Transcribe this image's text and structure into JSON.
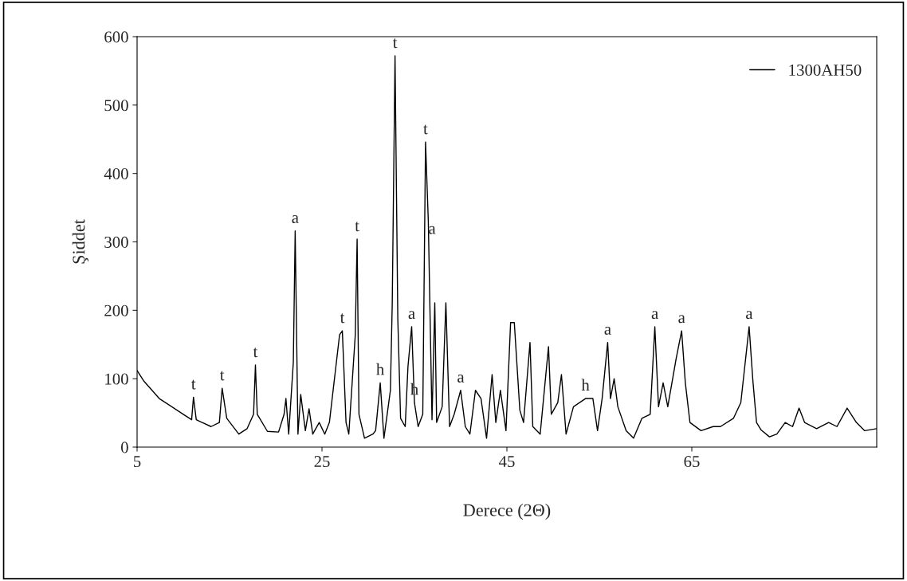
{
  "chart_data": {
    "type": "line",
    "xlabel": "Derece (2Θ)",
    "ylabel": "Şiddet",
    "xlim": [
      5,
      85
    ],
    "xticks": [
      5,
      25,
      45,
      65
    ],
    "ylim": [
      0,
      600
    ],
    "yticks": [
      0,
      100,
      200,
      300,
      400,
      500,
      600
    ],
    "grid": false,
    "legend": "top right",
    "marker": "none",
    "line_style": "solid",
    "series": [
      {
        "name": "1300AH50",
        "color": "#000000",
        "x": [
          5,
          5.7,
          7.4,
          10.0,
          10.9,
          11.1,
          11.4,
          13.0,
          13.9,
          14.2,
          14.7,
          16.0,
          16.9,
          17.6,
          17.8,
          18.0,
          19.1,
          20.3,
          20.9,
          21.1,
          21.4,
          21.9,
          22.1,
          22.4,
          22.7,
          23.2,
          23.6,
          24.0,
          24.7,
          25.3,
          25.8,
          26.9,
          27.2,
          27.6,
          27.9,
          28.6,
          28.8,
          29.0,
          29.6,
          30.5,
          30.8,
          31.3,
          31.7,
          32.4,
          32.6,
          32.9,
          33.2,
          33.5,
          34.0,
          34.3,
          34.7,
          35.0,
          35.4,
          35.9,
          36.2,
          36.5,
          36.9,
          37.2,
          37.4,
          38.0,
          38.4,
          38.8,
          39.3,
          40.0,
          40.5,
          41.0,
          41.6,
          42.2,
          42.8,
          43.4,
          43.8,
          44.3,
          44.9,
          45.4,
          45.8,
          46.4,
          46.8,
          47.5,
          47.8,
          48.6,
          49.5,
          49.8,
          50.5,
          50.9,
          51.4,
          52.2,
          53.5,
          54.3,
          54.8,
          55.3,
          55.9,
          56.2,
          56.6,
          57.0,
          57.9,
          58.7,
          59.6,
          60.5,
          61.0,
          61.4,
          61.9,
          62.4,
          63.3,
          63.9,
          64.3,
          64.8,
          66.0,
          67.3,
          68.1,
          69.5,
          70.3,
          71.2,
          71.6,
          72.0,
          72.5,
          73.4,
          74.2,
          75.1,
          75.9,
          76.6,
          77.2,
          78.5,
          79.8,
          80.7,
          81.8,
          82.8,
          83.7,
          85
        ],
        "values": [
          112,
          97,
          71,
          48,
          40,
          73,
          40,
          30,
          36,
          86,
          42,
          19,
          27,
          48,
          120,
          48,
          23,
          22,
          48,
          71,
          19,
          124,
          316,
          19,
          77,
          24,
          56,
          19,
          36,
          19,
          36,
          164,
          170,
          36,
          19,
          164,
          304,
          48,
          13,
          19,
          24,
          94,
          13,
          83,
          211,
          572,
          188,
          42,
          30,
          118,
          176,
          65,
          30,
          48,
          446,
          330,
          40,
          211,
          36,
          59,
          211,
          30,
          48,
          83,
          30,
          19,
          83,
          71,
          13,
          106,
          36,
          83,
          24,
          182,
          182,
          54,
          36,
          153,
          30,
          19,
          147,
          48,
          65,
          106,
          19,
          59,
          71,
          71,
          24,
          71,
          153,
          71,
          100,
          59,
          24,
          13,
          42,
          48,
          176,
          59,
          94,
          59,
          129,
          170,
          94,
          36,
          24,
          30,
          30,
          42,
          65,
          176,
          98,
          36,
          25,
          15,
          19,
          36,
          30,
          57,
          36,
          27,
          36,
          30,
          57,
          36,
          24,
          27
        ]
      }
    ],
    "annotations": [
      {
        "text": "t",
        "x": 11.1,
        "y": 73
      },
      {
        "text": "t",
        "x": 14.2,
        "y": 86
      },
      {
        "text": "t",
        "x": 17.8,
        "y": 120
      },
      {
        "text": "a",
        "x": 22.1,
        "y": 316
      },
      {
        "text": "t",
        "x": 27.2,
        "y": 170
      },
      {
        "text": "t",
        "x": 28.8,
        "y": 304
      },
      {
        "text": "h",
        "x": 31.3,
        "y": 94
      },
      {
        "text": "t",
        "x": 32.9,
        "y": 572
      },
      {
        "text": "a",
        "x": 34.7,
        "y": 176
      },
      {
        "text": "h",
        "x": 35.0,
        "y": 65
      },
      {
        "text": "t",
        "x": 36.2,
        "y": 446
      },
      {
        "text": "a",
        "x": 36.9,
        "y": 300
      },
      {
        "text": "a",
        "x": 40.0,
        "y": 83
      },
      {
        "text": "h",
        "x": 53.5,
        "y": 71
      },
      {
        "text": "a",
        "x": 55.9,
        "y": 153
      },
      {
        "text": "a",
        "x": 61.0,
        "y": 176
      },
      {
        "text": "a",
        "x": 63.9,
        "y": 170
      },
      {
        "text": "a",
        "x": 71.2,
        "y": 176
      }
    ]
  }
}
